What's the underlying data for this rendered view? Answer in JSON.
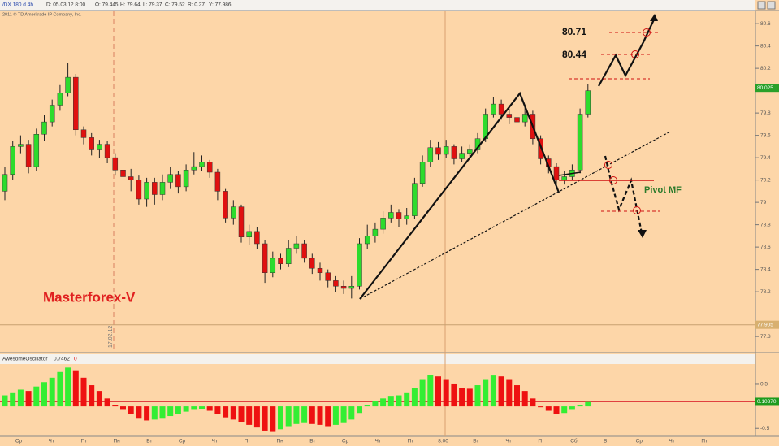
{
  "chart_data": [
    {
      "type": "candlestick",
      "title": "/DX 180 d 4h",
      "info": [
        "D: 05.03.12 8:00",
        "O: 79.445",
        "H: 79.64",
        "L: 79.37",
        "C: 79.52",
        "R: 0.27",
        "Y: 77.986"
      ],
      "subtitle": "2011 © TD Ameritrade IP Company, Inc.",
      "annotations": [
        "80.71",
        "80.44",
        "Pivot MF",
        "Masterforex-V",
        "17.02.12"
      ],
      "open": [
        79.1,
        79.25,
        79.5,
        79.52,
        79.32,
        79.61,
        79.72,
        79.87,
        79.98,
        80.12,
        79.65,
        79.58,
        79.47,
        79.52,
        79.4,
        79.29,
        79.23,
        79.2,
        79.03,
        79.18,
        79.07,
        79.18,
        79.25,
        79.14,
        79.29,
        79.32,
        79.36,
        79.27,
        79.1,
        78.86,
        78.96,
        78.69,
        78.74,
        78.63,
        78.37,
        78.5,
        78.45,
        78.59,
        78.63,
        78.5,
        78.41,
        78.37,
        78.3,
        78.25,
        78.23,
        78.25,
        78.63,
        78.7,
        78.76,
        78.86,
        78.91,
        78.85,
        78.88,
        79.17,
        79.36,
        79.49,
        79.43,
        79.5,
        79.39,
        79.44,
        79.47,
        79.57,
        79.79,
        79.88,
        79.79,
        79.76,
        79.72,
        79.79,
        79.57,
        79.39,
        79.32,
        79.2,
        79.23,
        79.29,
        79.79
      ],
      "high": [
        79.32,
        79.55,
        79.6,
        79.56,
        79.66,
        79.78,
        79.92,
        80.05,
        80.25,
        80.15,
        79.68,
        79.62,
        79.56,
        79.55,
        79.44,
        79.33,
        79.3,
        79.24,
        79.22,
        79.22,
        79.25,
        79.32,
        79.28,
        79.34,
        79.45,
        79.42,
        79.38,
        79.3,
        79.12,
        79.02,
        78.98,
        78.8,
        78.78,
        78.66,
        78.56,
        78.54,
        78.66,
        78.7,
        78.66,
        78.54,
        78.46,
        78.4,
        78.34,
        78.3,
        78.34,
        78.68,
        78.8,
        78.82,
        78.92,
        78.98,
        78.94,
        78.95,
        79.22,
        79.42,
        79.56,
        79.54,
        79.56,
        79.52,
        79.5,
        79.52,
        79.62,
        79.84,
        79.94,
        79.92,
        79.84,
        79.8,
        79.86,
        79.82,
        79.6,
        79.42,
        79.35,
        79.28,
        79.34,
        79.84,
        80.06
      ],
      "low": [
        79.02,
        79.2,
        79.44,
        79.26,
        79.28,
        79.55,
        79.68,
        79.82,
        79.95,
        79.6,
        79.52,
        79.42,
        79.4,
        79.35,
        79.24,
        79.18,
        79.1,
        78.98,
        78.96,
        78.98,
        79.02,
        79.12,
        79.08,
        79.1,
        79.25,
        79.28,
        79.22,
        79.02,
        78.82,
        78.8,
        78.64,
        78.62,
        78.58,
        78.28,
        78.33,
        78.4,
        78.42,
        78.54,
        78.46,
        78.36,
        78.3,
        78.24,
        78.2,
        78.18,
        78.14,
        78.22,
        78.58,
        78.64,
        78.72,
        78.82,
        78.78,
        78.8,
        78.85,
        79.14,
        79.32,
        79.38,
        79.4,
        79.34,
        79.36,
        79.4,
        79.44,
        79.54,
        79.76,
        79.74,
        79.7,
        79.66,
        79.68,
        79.52,
        79.34,
        79.26,
        79.14,
        79.16,
        79.2,
        79.26,
        79.76
      ],
      "close": [
        79.25,
        79.5,
        79.52,
        79.32,
        79.61,
        79.72,
        79.87,
        79.98,
        80.12,
        79.65,
        79.58,
        79.47,
        79.52,
        79.4,
        79.29,
        79.23,
        79.2,
        79.03,
        79.18,
        79.07,
        79.18,
        79.25,
        79.14,
        79.29,
        79.32,
        79.36,
        79.27,
        79.1,
        78.86,
        78.96,
        78.69,
        78.74,
        78.63,
        78.37,
        78.5,
        78.45,
        78.59,
        78.63,
        78.5,
        78.41,
        78.37,
        78.3,
        78.25,
        78.23,
        78.25,
        78.63,
        78.7,
        78.76,
        78.86,
        78.91,
        78.85,
        78.88,
        79.17,
        79.36,
        79.49,
        79.43,
        79.5,
        79.39,
        79.44,
        79.47,
        79.57,
        79.79,
        79.88,
        79.79,
        79.76,
        79.72,
        79.79,
        79.57,
        79.39,
        79.32,
        79.2,
        79.23,
        79.29,
        79.79,
        80.0
      ],
      "up_color": "#2ddb2d",
      "down_color": "#e01010",
      "ylim": [
        77.67,
        80.71
      ],
      "yticks": [
        80.6,
        80.4,
        80.2,
        79.8,
        79.6,
        79.4,
        79.2,
        79,
        78.8,
        78.6,
        78.4,
        78.2,
        77.8
      ],
      "price_tags": [
        80.025,
        77.905
      ]
    },
    {
      "type": "bar",
      "title": "AwesomeOscillator",
      "info": [
        "0.7462",
        "0"
      ],
      "values": [
        0.25,
        0.3,
        0.38,
        0.35,
        0.45,
        0.55,
        0.65,
        0.78,
        0.88,
        0.8,
        0.65,
        0.48,
        0.35,
        0.18,
        0.02,
        -0.08,
        -0.18,
        -0.28,
        -0.32,
        -0.3,
        -0.28,
        -0.22,
        -0.18,
        -0.12,
        -0.08,
        -0.06,
        -0.1,
        -0.18,
        -0.25,
        -0.3,
        -0.35,
        -0.42,
        -0.48,
        -0.55,
        -0.58,
        -0.52,
        -0.45,
        -0.4,
        -0.38,
        -0.4,
        -0.42,
        -0.45,
        -0.42,
        -0.38,
        -0.3,
        -0.15,
        0.02,
        0.12,
        0.18,
        0.22,
        0.25,
        0.3,
        0.42,
        0.6,
        0.72,
        0.68,
        0.6,
        0.5,
        0.42,
        0.4,
        0.48,
        0.6,
        0.7,
        0.68,
        0.6,
        0.48,
        0.35,
        0.18,
        -0.02,
        -0.1,
        -0.18,
        -0.15,
        -0.08,
        0.02,
        0.1
      ],
      "up_color": "#33ee33",
      "down_color": "#ee1111",
      "ylim": [
        -0.68,
        0.96
      ],
      "yticks": [
        0.5,
        -0.5
      ],
      "price_tags": [
        {
          "value": 0.1037,
          "label": "0.10370"
        }
      ],
      "x_axis_labels": [
        "Ср",
        "Чт",
        "Пт",
        "Пн",
        "Вт",
        "Ср",
        "Чт",
        "Пт",
        "Пн",
        "Вт",
        "Ср",
        "Чт",
        "Пт",
        "8:00",
        "Вт",
        "Чт",
        "Пт",
        "Сб",
        "Вт",
        "Ср",
        "Чт",
        "Пт"
      ]
    }
  ]
}
